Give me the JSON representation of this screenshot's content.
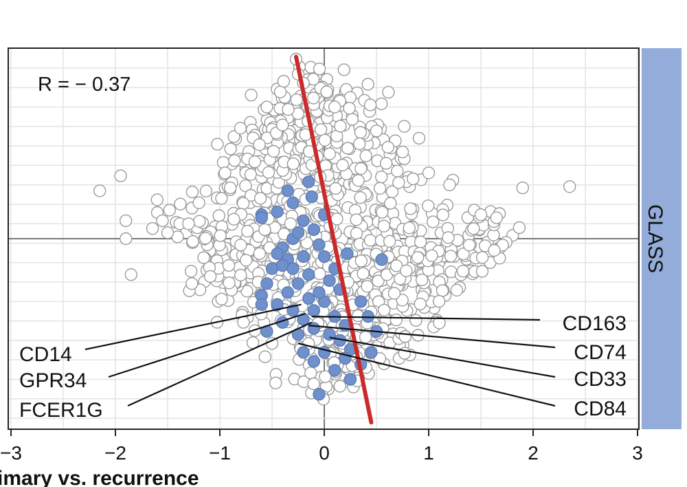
{
  "chart_data": {
    "type": "scatter",
    "title": "",
    "xlabel": "imary vs. recurrence",
    "ylabel": "",
    "xlim": [
      -3,
      3
    ],
    "ylim": [
      -3.2,
      3.2
    ],
    "x_ticks": [
      "−3",
      "−2",
      "−1",
      "0",
      "1",
      "2",
      "3"
    ],
    "x_tick_values": [
      -3,
      -2,
      -1,
      0,
      1,
      2,
      3
    ],
    "grid": true,
    "facet_label": "GLASS",
    "correlation_label": "R = − 0.37",
    "colors": {
      "background_point": "#ffffff",
      "point_outline": "#9a9a9a",
      "highlight_point": "#7090cc",
      "highlight_outline": "#5a7ab8",
      "regression_line": "#cc2a2a",
      "strip": "#93acd9",
      "grid": "#e3e3e3"
    },
    "regression_line": {
      "x": [
        -0.27,
        0.45
      ],
      "y": [
        3.04,
        -3.07
      ]
    },
    "background_points": {
      "explicit": [
        [
          -0.27,
          3.0
        ],
        [
          -0.25,
          2.75
        ],
        [
          -0.7,
          2.4
        ],
        [
          0.75,
          1.45
        ],
        [
          1.2,
          0.9
        ],
        [
          1.9,
          0.85
        ],
        [
          2.35,
          0.87
        ],
        [
          -1.95,
          1.05
        ],
        [
          -2.15,
          0.8
        ],
        [
          -1.6,
          0.65
        ],
        [
          -1.9,
          0.3
        ],
        [
          -1.9,
          0.0
        ],
        [
          -1.85,
          -0.6
        ],
        [
          -1.55,
          0.3
        ],
        [
          -1.5,
          0.1
        ],
        [
          -1.3,
          0.25
        ],
        [
          -0.95,
          1.1
        ],
        [
          -0.9,
          0.85
        ],
        [
          0.85,
          1.0
        ],
        [
          -0.2,
          2.6
        ],
        [
          -0.4,
          1.9
        ],
        [
          0.5,
          1.8
        ],
        [
          -1.2,
          0.6
        ],
        [
          1.5,
          0.4
        ],
        [
          1.65,
          0.35
        ],
        [
          1.0,
          1.1
        ],
        [
          0.1,
          2.2
        ],
        [
          -0.55,
          2.2
        ]
      ],
      "clusters": [
        {
          "cx": -0.05,
          "cy": 0.4,
          "sx": 0.55,
          "sy": 1.25,
          "n": 520
        },
        {
          "cx": -0.2,
          "cy": 1.8,
          "sx": 0.28,
          "sy": 0.55,
          "n": 130
        },
        {
          "cx": 0.25,
          "cy": -1.6,
          "sx": 0.32,
          "sy": 0.65,
          "n": 150
        },
        {
          "cx": 0.95,
          "cy": -0.6,
          "sx": 0.42,
          "sy": 0.55,
          "n": 150
        },
        {
          "cx": -0.85,
          "cy": -0.3,
          "sx": 0.42,
          "sy": 0.55,
          "n": 100
        },
        {
          "cx": 1.55,
          "cy": -0.1,
          "sx": 0.3,
          "sy": 0.4,
          "n": 45
        }
      ]
    },
    "highlighted_points": [
      [
        -0.15,
        0.95
      ],
      [
        -0.12,
        0.7
      ],
      [
        -0.35,
        0.8
      ],
      [
        -0.3,
        0.6
      ],
      [
        -0.6,
        0.4
      ],
      [
        -0.6,
        0.35
      ],
      [
        -0.45,
        0.45
      ],
      [
        -0.3,
        0.0
      ],
      [
        -0.1,
        0.15
      ],
      [
        -0.25,
        0.1
      ],
      [
        -0.35,
        -0.35
      ],
      [
        -0.5,
        -0.5
      ],
      [
        -0.4,
        -0.45
      ],
      [
        -0.2,
        -0.3
      ],
      [
        -0.05,
        -0.1
      ],
      [
        0.0,
        -0.3
      ],
      [
        0.1,
        -0.5
      ],
      [
        0.22,
        -0.25
      ],
      [
        0.55,
        -0.35
      ],
      [
        0.15,
        -0.85
      ],
      [
        0.35,
        -1.05
      ],
      [
        0.42,
        -1.3
      ],
      [
        0.5,
        -1.55
      ],
      [
        -0.6,
        -0.95
      ],
      [
        -0.6,
        -1.1
      ],
      [
        -0.55,
        -1.55
      ],
      [
        -0.4,
        -1.4
      ],
      [
        -0.3,
        -1.2
      ],
      [
        -0.2,
        -1.35
      ],
      [
        -0.1,
        -1.2
      ],
      [
        0.0,
        -1.05
      ],
      [
        -0.15,
        -1.0
      ],
      [
        -0.05,
        -0.9
      ],
      [
        -0.25,
        -0.75
      ],
      [
        -0.35,
        -0.9
      ],
      [
        -0.45,
        -1.1
      ],
      [
        -0.1,
        -1.5
      ],
      [
        0.05,
        -1.6
      ],
      [
        0.15,
        -1.7
      ],
      [
        0.25,
        -1.85
      ],
      [
        0.35,
        -2.1
      ],
      [
        0.1,
        -2.2
      ],
      [
        -0.1,
        -2.05
      ],
      [
        -0.2,
        -1.9
      ],
      [
        0.0,
        -1.9
      ],
      [
        0.2,
        -2.0
      ],
      [
        -0.05,
        -2.6
      ],
      [
        0.25,
        -2.35
      ],
      [
        -0.3,
        -0.5
      ],
      [
        -0.15,
        -0.6
      ],
      [
        0.05,
        -0.7
      ],
      [
        -0.4,
        -0.15
      ],
      [
        0.2,
        -1.45
      ],
      [
        0.45,
        -1.9
      ],
      [
        -0.55,
        -0.75
      ],
      [
        -0.45,
        -0.25
      ],
      [
        -0.25,
        -1.6
      ],
      [
        0.1,
        -1.3
      ],
      [
        -0.2,
        0.3
      ],
      [
        0.0,
        0.4
      ]
    ],
    "annotations": [
      {
        "label": "CD14",
        "anchor": [
          -0.22,
          -1.1
        ],
        "side": "left"
      },
      {
        "label": "GPR34",
        "anchor": [
          -0.18,
          -1.25
        ],
        "side": "left"
      },
      {
        "label": "FCER1G",
        "anchor": [
          -0.12,
          -1.4
        ],
        "side": "left"
      },
      {
        "label": "CD163",
        "anchor": [
          -0.12,
          -1.3
        ],
        "side": "right"
      },
      {
        "label": "CD74",
        "anchor": [
          -0.15,
          -1.45
        ],
        "side": "right"
      },
      {
        "label": "CD33",
        "anchor": [
          0.05,
          -1.65
        ],
        "side": "right"
      },
      {
        "label": "CD84",
        "anchor": [
          -0.25,
          -1.75
        ],
        "side": "right"
      }
    ]
  }
}
